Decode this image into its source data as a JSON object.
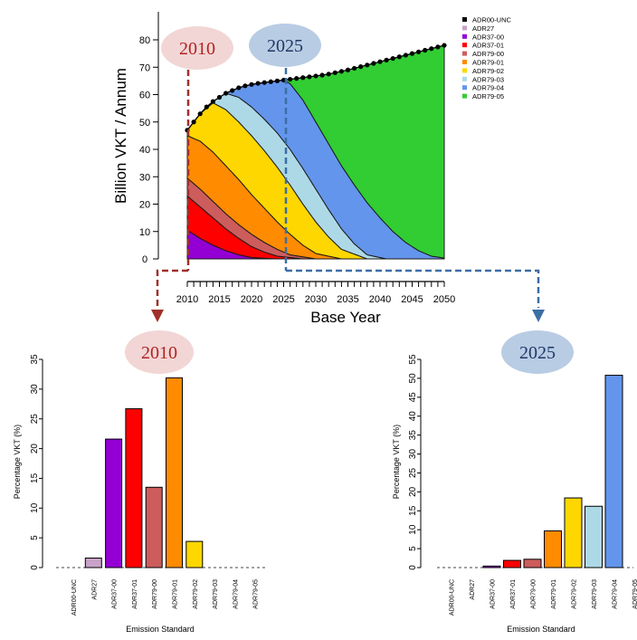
{
  "colors": {
    "ADR00-UNC": "#000000",
    "ADR27": "#c8a2c8",
    "ADR37-00": "#9400d3",
    "ADR37-01": "#ff0000",
    "ADR79-00": "#cd5c5c",
    "ADR79-01": "#ff8c00",
    "ADR79-02": "#ffd700",
    "ADR79-03": "#add8e6",
    "ADR79-04": "#6495ed",
    "ADR79-05": "#32cd32",
    "callout_2010_fill": "#f2d6d6",
    "callout_2010_text": "#b22222",
    "callout_2025_fill": "#b8cce4",
    "callout_2025_text": "#1f3864",
    "arrow_2010": "#a0302a",
    "arrow_2025": "#3a6ea5"
  },
  "callouts": {
    "year_2010": "2010",
    "year_2025": "2025"
  },
  "chart_data": [
    {
      "type": "area",
      "xlabel": "Base Year",
      "ylabel": "Billion VKT / Annum",
      "xlim": [
        2010,
        2050
      ],
      "ylim": [
        0,
        80
      ],
      "x_ticks": [
        2010,
        2015,
        2020,
        2025,
        2030,
        2035,
        2040,
        2045,
        2050
      ],
      "y_ticks": [
        0,
        10,
        20,
        30,
        40,
        50,
        60,
        70,
        80
      ],
      "legend_position": "top-right",
      "legend": [
        "ADR00-UNC",
        "ADR27",
        "ADR37-00",
        "ADR37-01",
        "ADR79-00",
        "ADR79-01",
        "ADR79-02",
        "ADR79-03",
        "ADR79-04",
        "ADR79-05"
      ],
      "x": [
        2010,
        2011,
        2012,
        2013,
        2014,
        2015,
        2016,
        2017,
        2018,
        2019,
        2020,
        2021,
        2022,
        2023,
        2024,
        2025,
        2026,
        2027,
        2028,
        2029,
        2030,
        2031,
        2032,
        2033,
        2034,
        2035,
        2036,
        2037,
        2038,
        2039,
        2040,
        2041,
        2042,
        2043,
        2044,
        2045,
        2046,
        2047,
        2048,
        2049,
        2050
      ],
      "total": [
        47,
        50,
        53,
        55.5,
        57.5,
        59,
        60.5,
        61.5,
        62.5,
        63.2,
        63.7,
        64.1,
        64.4,
        64.7,
        65,
        65.3,
        65.6,
        65.9,
        66.2,
        66.5,
        66.8,
        67.1,
        67.5,
        68,
        68.5,
        69,
        69.6,
        70.2,
        70.8,
        71.4,
        72,
        72.6,
        73.2,
        73.8,
        74.4,
        75,
        75.6,
        76.2,
        76.8,
        77.4,
        78
      ],
      "cumulative_boundaries": [
        {
          "name": "ADR37-00",
          "x": [
            2010,
            2012,
            2014,
            2016,
            2018,
            2020,
            2024
          ],
          "y": [
            10.5,
            7.5,
            5,
            3,
            1.5,
            0.5,
            0
          ]
        },
        {
          "name": "ADR37-01",
          "x": [
            2010,
            2012,
            2014,
            2016,
            2018,
            2020,
            2022,
            2024,
            2028
          ],
          "y": [
            23,
            19,
            15,
            11,
            7.5,
            4.5,
            2.5,
            1,
            0
          ]
        },
        {
          "name": "ADR79-00",
          "x": [
            2010,
            2012,
            2014,
            2016,
            2018,
            2020,
            2022,
            2024,
            2026,
            2030
          ],
          "y": [
            29.5,
            25.5,
            21,
            16.5,
            12.5,
            9,
            6,
            3.5,
            1.5,
            0
          ]
        },
        {
          "name": "ADR79-01",
          "x": [
            2010,
            2012,
            2014,
            2016,
            2018,
            2020,
            2022,
            2024,
            2026,
            2028,
            2030,
            2034
          ],
          "y": [
            45,
            43,
            39,
            34,
            29,
            23.5,
            18.5,
            13.5,
            9,
            5,
            2,
            0
          ]
        },
        {
          "name": "ADR79-02",
          "x": [
            2010,
            2012,
            2014,
            2016,
            2018,
            2020,
            2022,
            2024,
            2026,
            2028,
            2030,
            2032,
            2034,
            2038
          ],
          "y": [
            47,
            53,
            57,
            54.5,
            50,
            45,
            39.5,
            33.5,
            27,
            20,
            13.5,
            8,
            3.5,
            0
          ]
        },
        {
          "name": "ADR79-03",
          "x": [
            2010,
            2012,
            2014,
            2016,
            2018,
            2020,
            2022,
            2024,
            2026,
            2028,
            2030,
            2032,
            2034,
            2036,
            2038,
            2041
          ],
          "y": [
            47,
            53,
            57.5,
            60.5,
            59,
            55.5,
            51,
            46,
            40,
            33,
            25.5,
            18,
            11,
            5.5,
            1.5,
            0
          ]
        },
        {
          "name": "ADR79-04",
          "x": [
            2010,
            2012,
            2014,
            2016,
            2018,
            2020,
            2022,
            2024,
            2025,
            2026,
            2028,
            2030,
            2032,
            2034,
            2036,
            2038,
            2040,
            2042,
            2044,
            2046,
            2048,
            2050
          ],
          "y": [
            47,
            53,
            57.5,
            60.5,
            62.5,
            63.7,
            64.4,
            65,
            65.3,
            64,
            58,
            50,
            42,
            34,
            27,
            20.5,
            15,
            10,
            6,
            3,
            1,
            0.3
          ]
        }
      ]
    },
    {
      "type": "bar",
      "title": "2010",
      "xlabel": "Emission Standard",
      "ylabel": "Percentage VKT (%)",
      "ylim": [
        0,
        35
      ],
      "y_ticks": [
        0,
        5,
        10,
        15,
        20,
        25,
        30,
        35
      ],
      "categories": [
        "ADR00-UNC",
        "ADR27",
        "ADR37-00",
        "ADR37-01",
        "ADR79-00",
        "ADR79-01",
        "ADR79-02",
        "ADR79-03",
        "ADR79-04",
        "ADR79-05"
      ],
      "values": [
        0,
        1.6,
        21.6,
        26.7,
        13.5,
        31.9,
        4.4,
        0,
        0,
        0
      ]
    },
    {
      "type": "bar",
      "title": "2025",
      "xlabel": "Emission Standard",
      "ylabel": "Percentage VKT (%)",
      "ylim": [
        0,
        55
      ],
      "y_ticks": [
        0,
        5,
        10,
        15,
        20,
        25,
        30,
        35,
        40,
        45,
        50,
        55
      ],
      "categories": [
        "ADR00-UNC",
        "ADR27",
        "ADR37-00",
        "ADR37-01",
        "ADR79-00",
        "ADR79-01",
        "ADR79-02",
        "ADR79-03",
        "ADR79-04",
        "ADR79-05"
      ],
      "values": [
        0,
        0,
        0.4,
        1.9,
        2.2,
        9.7,
        18.4,
        16.2,
        50.8,
        0
      ]
    }
  ]
}
